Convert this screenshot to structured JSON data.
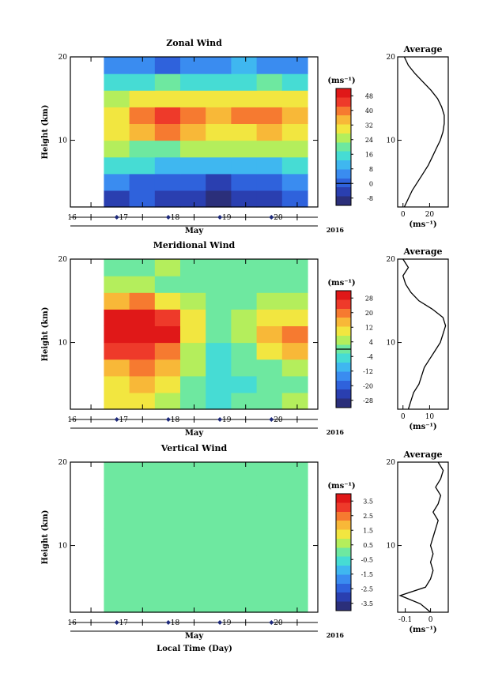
{
  "figure": {
    "xlabel": "Local Time (Day)",
    "colormap": [
      "#2b2f7a",
      "#2a3fb0",
      "#2f62dc",
      "#3a8cf0",
      "#3fb7f0",
      "#46dcd4",
      "#6ee8a0",
      "#b4ee5c",
      "#f2e640",
      "#f8b838",
      "#f67a30",
      "#ee3a2a",
      "#e01818"
    ],
    "contour_color": "#000000",
    "line_color": "#000000"
  },
  "chart_data": [
    {
      "type": "heatmap",
      "title": "Zonal Wind",
      "ylabel": "Height (km)",
      "xlabel": "May",
      "year": "2016",
      "x_ticks": [
        "16",
        "17",
        "18",
        "19",
        "20"
      ],
      "y_ticks": [
        "10",
        "20"
      ],
      "ylim": [
        2,
        20
      ],
      "xlim": [
        15.6,
        20.4
      ],
      "data_xlim": [
        16.25,
        20.2
      ],
      "unit": "(ms⁻¹)",
      "colorbar_ticks": [
        "48",
        "40",
        "32",
        "24",
        "16",
        "8",
        "0",
        "-8"
      ],
      "colorbar_range": [
        -12,
        52
      ],
      "zero_line": 0,
      "field": {
        "heights": [
          2,
          4,
          6,
          8,
          10,
          12,
          14,
          16,
          18
        ],
        "rows": [
          [
            -4,
            -2,
            -6,
            -4,
            -8,
            -6,
            -4,
            0
          ],
          [
            6,
            2,
            0,
            -2,
            -4,
            -2,
            0,
            4
          ],
          [
            16,
            14,
            12,
            10,
            8,
            10,
            12,
            14
          ],
          [
            24,
            22,
            22,
            24,
            26,
            24,
            26,
            24
          ],
          [
            30,
            36,
            40,
            36,
            32,
            30,
            34,
            32
          ],
          [
            32,
            40,
            44,
            42,
            36,
            38,
            40,
            36
          ],
          [
            26,
            28,
            30,
            30,
            28,
            32,
            30,
            28
          ],
          [
            14,
            16,
            18,
            16,
            14,
            16,
            18,
            14
          ],
          [
            4,
            6,
            2,
            6,
            4,
            8,
            6,
            4
          ]
        ]
      },
      "profile": {
        "title": "Average",
        "xlabel": "(ms⁻¹)",
        "x_ticks": [
          0,
          20
        ],
        "xlim": [
          -4,
          34
        ],
        "heights": [
          2,
          3,
          4,
          5,
          6,
          7,
          8,
          9,
          10,
          11,
          12,
          13,
          14,
          15,
          16,
          17,
          18,
          19,
          20
        ],
        "values": [
          1,
          4,
          7,
          11,
          15,
          19,
          22,
          25,
          28,
          30,
          31,
          31,
          29,
          26,
          21,
          15,
          9,
          4,
          1
        ]
      }
    },
    {
      "type": "heatmap",
      "title": "Meridional Wind",
      "ylabel": "Height (km)",
      "xlabel": "May",
      "year": "2016",
      "x_ticks": [
        "16",
        "17",
        "18",
        "19",
        "20"
      ],
      "y_ticks": [
        "10",
        "20"
      ],
      "ylim": [
        2,
        20
      ],
      "xlim": [
        15.6,
        20.4
      ],
      "data_xlim": [
        16.25,
        20.2
      ],
      "unit": "(ms⁻¹)",
      "colorbar_ticks": [
        "28",
        "20",
        "12",
        "4",
        "-4",
        "-12",
        "-20",
        "-28"
      ],
      "colorbar_range": [
        -32,
        32
      ],
      "zero_line": 0,
      "field": {
        "heights": [
          2,
          4,
          6,
          8,
          10,
          12,
          14,
          16,
          18
        ],
        "rows": [
          [
            8,
            10,
            6,
            0,
            -4,
            -2,
            2,
            4
          ],
          [
            12,
            14,
            10,
            2,
            -6,
            -4,
            0,
            2
          ],
          [
            16,
            20,
            16,
            4,
            -6,
            -2,
            2,
            6
          ],
          [
            24,
            26,
            22,
            6,
            -4,
            2,
            10,
            14
          ],
          [
            30,
            32,
            28,
            8,
            -2,
            6,
            14,
            20
          ],
          [
            28,
            30,
            26,
            10,
            0,
            4,
            10,
            12
          ],
          [
            16,
            18,
            12,
            6,
            2,
            2,
            4,
            6
          ],
          [
            6,
            4,
            2,
            -2,
            0,
            2,
            0,
            2
          ],
          [
            2,
            0,
            4,
            -2,
            2,
            0,
            -2,
            2
          ]
        ]
      },
      "profile": {
        "title": "Average",
        "xlabel": "(ms⁻¹)",
        "x_ticks": [
          0,
          10
        ],
        "xlim": [
          -2,
          17
        ],
        "heights": [
          2,
          3,
          4,
          5,
          6,
          7,
          8,
          9,
          10,
          11,
          12,
          13,
          14,
          15,
          16,
          17,
          18,
          19,
          20
        ],
        "values": [
          2,
          3,
          4,
          6,
          7,
          8,
          10,
          12,
          14,
          15,
          16,
          15,
          11,
          6,
          3,
          1,
          0,
          2,
          0
        ]
      }
    },
    {
      "type": "heatmap",
      "title": "Vertical Wind",
      "ylabel": "Height (km)",
      "xlabel": "May",
      "year": "2016",
      "x_ticks": [
        "16",
        "17",
        "18",
        "19",
        "20"
      ],
      "y_ticks": [
        "10",
        "20"
      ],
      "ylim": [
        2,
        20
      ],
      "xlim": [
        15.6,
        20.4
      ],
      "data_xlim": [
        16.25,
        20.2
      ],
      "unit": "(ms⁻¹)",
      "colorbar_ticks": [
        "3.5",
        "2.5",
        "1.5",
        "0.5",
        "-0.5",
        "-1.5",
        "-2.5",
        "-3.5"
      ],
      "colorbar_range": [
        -4,
        4
      ],
      "zero_line": null,
      "field": {
        "heights": [
          2,
          4,
          6,
          8,
          10,
          12,
          14,
          16,
          18
        ],
        "rows": [
          [
            -0.2,
            0.1,
            -0.1,
            0.2,
            -0.3,
            0.1,
            0.0,
            0.2
          ],
          [
            0.1,
            -0.1,
            0.2,
            0.0,
            -0.2,
            0.1,
            -0.1,
            0.0
          ],
          [
            0.0,
            0.2,
            -0.1,
            0.1,
            0.0,
            -0.2,
            0.1,
            -0.1
          ],
          [
            0.2,
            0.0,
            0.1,
            -0.1,
            0.2,
            0.0,
            -0.1,
            0.1
          ],
          [
            -0.1,
            0.1,
            0.0,
            0.2,
            -0.1,
            0.1,
            0.0,
            0.2
          ],
          [
            0.1,
            -0.2,
            0.1,
            0.0,
            0.1,
            -0.1,
            0.2,
            0.0
          ],
          [
            0.0,
            0.1,
            -0.1,
            0.1,
            0.0,
            0.2,
            -0.1,
            0.1
          ],
          [
            -0.1,
            0.0,
            0.2,
            -0.1,
            0.1,
            0.0,
            0.1,
            -0.2
          ],
          [
            0.2,
            -0.1,
            0.0,
            0.1,
            -0.2,
            0.1,
            0.0,
            0.1
          ]
        ]
      },
      "profile": {
        "title": "Average",
        "xlabel": "(ms⁻¹)",
        "x_ticks": [
          -0.1,
          0.0
        ],
        "xlim": [
          -0.13,
          0.07
        ],
        "heights": [
          2,
          3,
          4,
          5,
          6,
          7,
          8,
          9,
          10,
          11,
          12,
          13,
          14,
          15,
          16,
          17,
          18,
          19,
          20
        ],
        "values": [
          0.0,
          -0.04,
          -0.12,
          -0.02,
          0.0,
          0.01,
          0.0,
          0.01,
          0.0,
          0.01,
          0.02,
          0.03,
          0.01,
          0.03,
          0.04,
          0.02,
          0.04,
          0.05,
          0.03
        ]
      }
    }
  ]
}
